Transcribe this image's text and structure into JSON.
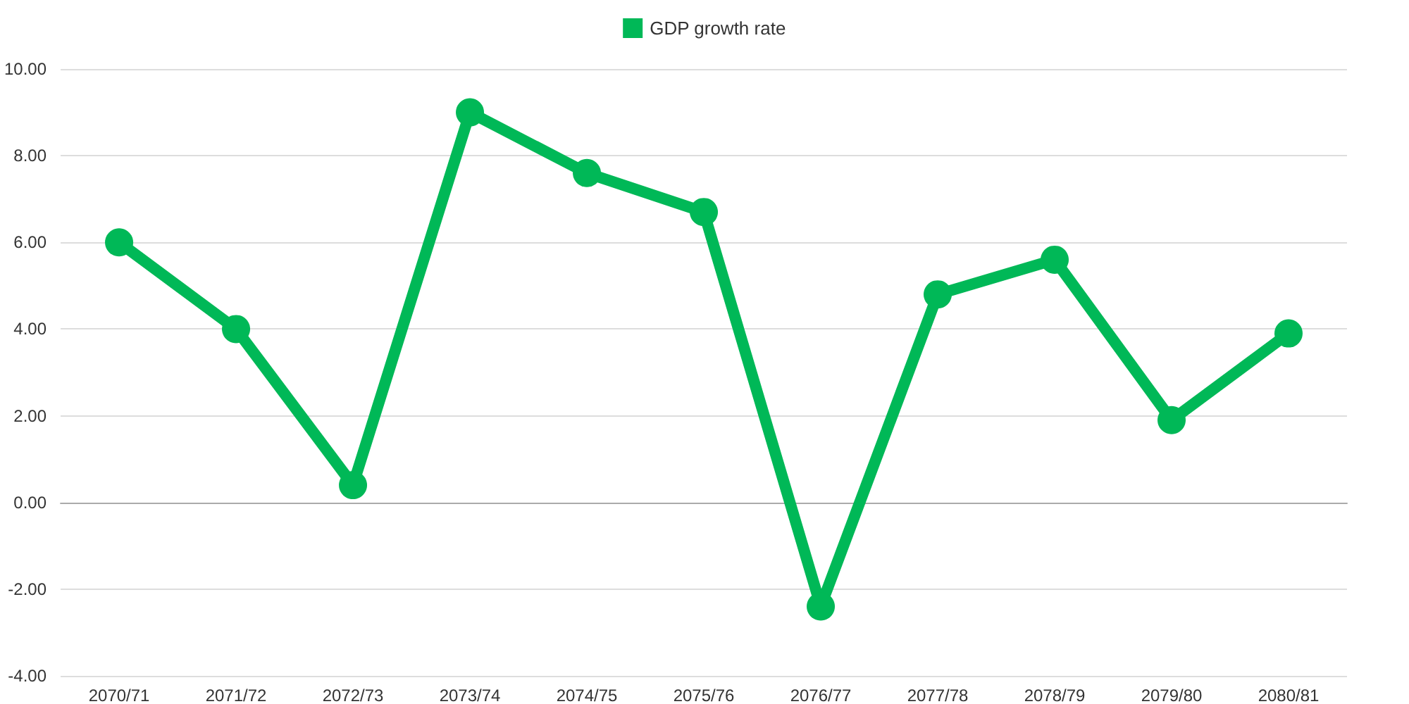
{
  "chart_data": {
    "type": "line",
    "categories": [
      "2070/71",
      "2071/72",
      "2072/73",
      "2073/74",
      "2074/75",
      "2075/76",
      "2076/77",
      "2077/78",
      "2078/79",
      "2079/80",
      "2080/81"
    ],
    "series": [
      {
        "name": "GDP growth rate",
        "color": "#00b857",
        "values": [
          6.0,
          4.0,
          0.4,
          9.0,
          7.6,
          6.7,
          -2.4,
          4.8,
          5.6,
          1.9,
          3.9
        ]
      }
    ],
    "ylim": [
      -4,
      10
    ],
    "yticks": [
      {
        "value": -4,
        "label": "-4.00"
      },
      {
        "value": -2,
        "label": "-2.00"
      },
      {
        "value": 0,
        "label": "0.00"
      },
      {
        "value": 2,
        "label": "2.00"
      },
      {
        "value": 4,
        "label": "4.00"
      },
      {
        "value": 6,
        "label": "6.00"
      },
      {
        "value": 8,
        "label": "8.00"
      },
      {
        "value": 10,
        "label": "10.00"
      }
    ],
    "grid": "y",
    "legend": "top",
    "marker": "circle",
    "line_style": "solid"
  }
}
